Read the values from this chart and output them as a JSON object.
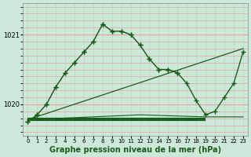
{
  "bg_color": "#cce8d8",
  "grid_color_h": "#e8a0a0",
  "grid_color_v": "#b8d8c8",
  "line_color": "#1a5c1a",
  "xlabel": "Graphe pression niveau de la mer (hPa)",
  "xlabel_fontsize": 7.0,
  "ylim": [
    1019.55,
    1021.45
  ],
  "yticks": [
    1020.0,
    1021.0
  ],
  "y_minor_ticks": [
    1019.6,
    1019.7,
    1019.8,
    1019.9,
    1020.1,
    1020.2,
    1020.3,
    1020.4,
    1020.5,
    1020.6,
    1020.7,
    1020.8,
    1020.9,
    1021.1,
    1021.2,
    1021.3,
    1021.4
  ],
  "xlim": [
    -0.5,
    23.5
  ],
  "xticks": [
    0,
    1,
    2,
    3,
    4,
    5,
    6,
    7,
    8,
    9,
    10,
    11,
    12,
    13,
    14,
    15,
    16,
    17,
    18,
    19,
    20,
    21,
    22,
    23
  ],
  "series1_x": [
    0,
    1,
    2,
    3,
    4,
    5,
    6,
    7,
    8,
    9,
    10,
    11,
    12,
    13,
    14,
    15,
    16,
    17,
    18,
    19,
    20,
    21,
    22,
    23
  ],
  "series1_y": [
    1019.75,
    1019.85,
    1020.0,
    1020.25,
    1020.45,
    1020.6,
    1020.75,
    1020.9,
    1021.15,
    1021.05,
    1021.05,
    1021.0,
    1020.85,
    1020.65,
    1020.5,
    1020.5,
    1020.45,
    1020.3,
    1020.05,
    1019.85,
    1019.9,
    1020.1,
    1020.3,
    1020.75
  ],
  "series1_dotted_x": [
    0,
    1,
    2,
    3,
    4,
    5,
    6,
    7,
    8,
    9,
    10,
    11,
    12,
    13,
    14,
    15,
    16
  ],
  "series1_dotted_y": [
    1019.75,
    1019.85,
    1020.0,
    1020.25,
    1020.45,
    1020.6,
    1020.75,
    1020.9,
    1021.15,
    1021.05,
    1021.05,
    1021.0,
    1020.85,
    1020.65,
    1020.5,
    1020.5,
    1020.45
  ],
  "series2_x": [
    0,
    23
  ],
  "series2_y": [
    1019.78,
    1020.8
  ],
  "series3_x": [
    0,
    19
  ],
  "series3_y": [
    1019.78,
    1019.78
  ],
  "series4_x": [
    0,
    12,
    19,
    23
  ],
  "series4_y": [
    1019.78,
    1019.85,
    1019.82,
    1019.82
  ]
}
